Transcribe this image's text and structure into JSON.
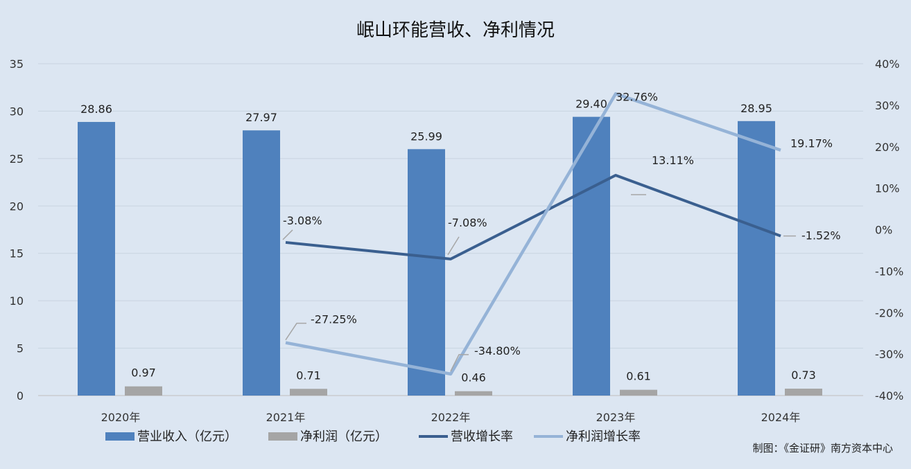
{
  "chart_data": {
    "type": "bar",
    "title": "岷山环能营收、净利情况",
    "categories": [
      "2020年",
      "2021年",
      "2022年",
      "2023年",
      "2024年"
    ],
    "series": [
      {
        "name": "营业收入（亿元）",
        "type": "bar",
        "axis": "left",
        "color": "#4f81bd",
        "values": [
          28.86,
          27.97,
          25.99,
          29.4,
          28.95
        ],
        "labels": [
          "28.86",
          "27.97",
          "25.99",
          "29.40",
          "28.95"
        ]
      },
      {
        "name": "净利润（亿元）",
        "type": "bar",
        "axis": "left",
        "color": "#a5a5a5",
        "values": [
          0.97,
          0.71,
          0.46,
          0.61,
          0.73
        ],
        "labels": [
          "0.97",
          "0.71",
          "0.46",
          "0.61",
          "0.73"
        ]
      },
      {
        "name": "营收增长率",
        "type": "line",
        "axis": "right",
        "color": "#3a5f8f",
        "values": [
          null,
          -3.08,
          -7.08,
          13.11,
          -1.52
        ],
        "labels": [
          "",
          "-3.08%",
          "-7.08%",
          "13.11%",
          "-1.52%"
        ]
      },
      {
        "name": "净利润增长率",
        "type": "line",
        "axis": "right",
        "color": "#95b3d7",
        "values": [
          null,
          -27.25,
          -34.8,
          32.76,
          19.17
        ],
        "labels": [
          "",
          "-27.25%",
          "-34.80%",
          "32.76%",
          "19.17%"
        ]
      }
    ],
    "y_left": {
      "min": 0,
      "max": 35,
      "ticks": [
        "0",
        "5",
        "10",
        "15",
        "20",
        "25",
        "30",
        "35"
      ]
    },
    "y_right": {
      "min": -40,
      "max": 40,
      "ticks": [
        "-40%",
        "-30%",
        "-20%",
        "-10%",
        "0%",
        "10%",
        "20%",
        "30%",
        "40%"
      ]
    },
    "grid": true,
    "legend": "bottom"
  },
  "credit": "制图：《金证研》南方资本中心"
}
